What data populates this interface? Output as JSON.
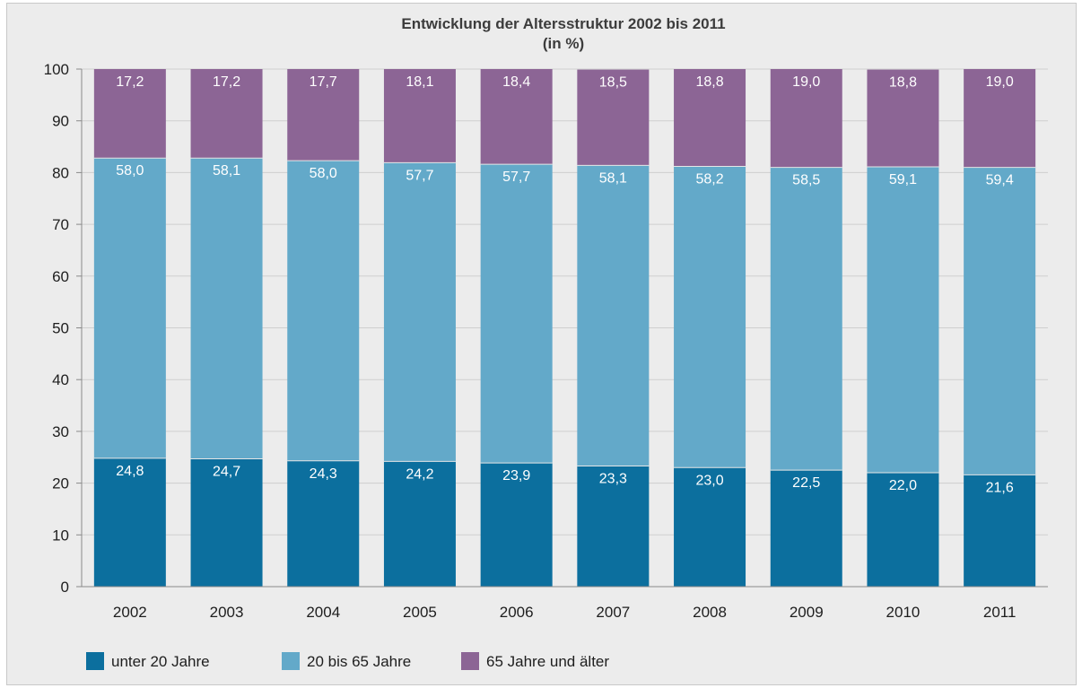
{
  "chart_data": {
    "type": "bar",
    "stacked": true,
    "title": "Entwicklung der Altersstruktur 2002 bis 2011",
    "subtitle": "(in %)",
    "xlabel": "",
    "ylabel": "",
    "ylim": [
      0,
      100
    ],
    "yticks": [
      "0",
      "10",
      "20",
      "30",
      "40",
      "50",
      "60",
      "70",
      "80",
      "90",
      "100"
    ],
    "categories": [
      "2002",
      "2003",
      "2004",
      "2005",
      "2006",
      "2007",
      "2008",
      "2009",
      "2010",
      "2011"
    ],
    "grid": true,
    "legend_position": "bottom-left",
    "series": [
      {
        "name": "unter 20 Jahre",
        "color": "#0c6f9e",
        "values": [
          24.8,
          24.7,
          24.3,
          24.2,
          23.9,
          23.3,
          23.0,
          22.5,
          22.0,
          21.6
        ],
        "labels": [
          "24,8",
          "24,7",
          "24,3",
          "24,2",
          "23,9",
          "23,3",
          "23,0",
          "22,5",
          "22,0",
          "21,6"
        ]
      },
      {
        "name": "20 bis 65 Jahre",
        "color": "#63a9c9",
        "values": [
          58.0,
          58.1,
          58.0,
          57.7,
          57.7,
          58.1,
          58.2,
          58.5,
          59.1,
          59.4
        ],
        "labels": [
          "58,0",
          "58,1",
          "58,0",
          "57,7",
          "57,7",
          "58,1",
          "58,2",
          "58,5",
          "59,1",
          "59,4"
        ]
      },
      {
        "name": "65 Jahre und älter",
        "color": "#8c6595",
        "values": [
          17.2,
          17.2,
          17.7,
          18.1,
          18.4,
          18.5,
          18.8,
          19.0,
          18.8,
          19.0
        ],
        "labels": [
          "17,2",
          "17,2",
          "17,7",
          "18,1",
          "18,4",
          "18,5",
          "18,8",
          "19,0",
          "18,8",
          "19,0"
        ]
      }
    ]
  }
}
